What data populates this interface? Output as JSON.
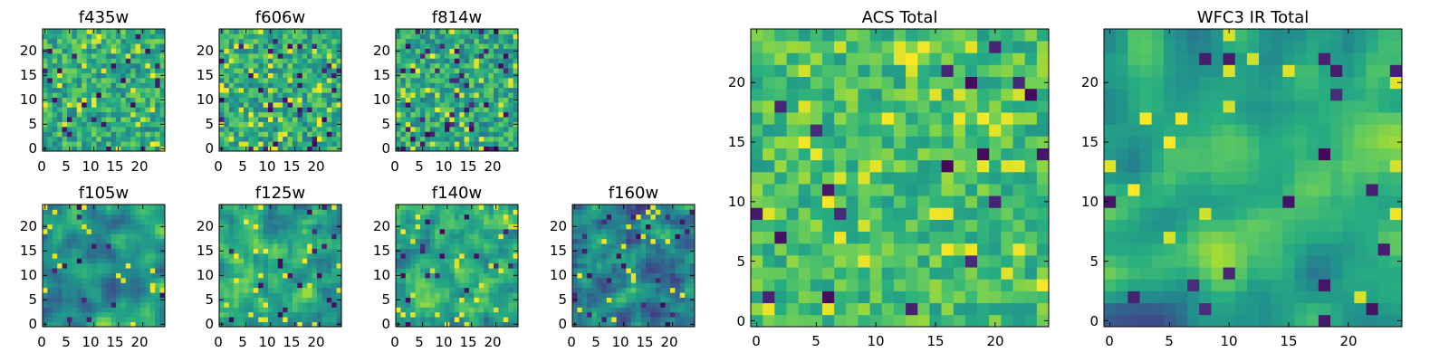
{
  "figure": {
    "colormap": "viridis"
  },
  "chart_data": [
    {
      "type": "heatmap",
      "title": "f435w",
      "grid_size": [
        25,
        25
      ],
      "xticks": [
        "0",
        "5",
        "10",
        "15",
        "20"
      ],
      "yticks": [
        "0",
        "5",
        "10",
        "15",
        "20"
      ],
      "xlim": [
        -0.5,
        24.5
      ],
      "ylim": [
        -0.5,
        24.5
      ],
      "vrange": [
        0,
        1
      ],
      "pattern": {
        "seed": 11,
        "smooth": 0,
        "base": 0.62,
        "spread": 0.2,
        "lows": 0.04,
        "highs": 0.06
      }
    },
    {
      "type": "heatmap",
      "title": "f606w",
      "grid_size": [
        25,
        25
      ],
      "xticks": [
        "0",
        "5",
        "10",
        "15",
        "20"
      ],
      "yticks": [
        "0",
        "5",
        "10",
        "15",
        "20"
      ],
      "xlim": [
        -0.5,
        24.5
      ],
      "ylim": [
        -0.5,
        24.5
      ],
      "vrange": [
        0,
        1
      ],
      "pattern": {
        "seed": 23,
        "smooth": 0,
        "base": 0.62,
        "spread": 0.2,
        "lows": 0.05,
        "highs": 0.07
      }
    },
    {
      "type": "heatmap",
      "title": "f814w",
      "grid_size": [
        25,
        25
      ],
      "xticks": [
        "0",
        "5",
        "10",
        "15",
        "20"
      ],
      "yticks": [
        "0",
        "5",
        "10",
        "15",
        "20"
      ],
      "xlim": [
        -0.5,
        24.5
      ],
      "ylim": [
        -0.5,
        24.5
      ],
      "vrange": [
        0,
        1
      ],
      "pattern": {
        "seed": 37,
        "smooth": 0,
        "base": 0.6,
        "spread": 0.2,
        "lows": 0.05,
        "highs": 0.07
      }
    },
    {
      "type": "heatmap",
      "title": "f105w",
      "grid_size": [
        25,
        25
      ],
      "xticks": [
        "0",
        "5",
        "10",
        "15",
        "20"
      ],
      "yticks": [
        "0",
        "5",
        "10",
        "15",
        "20"
      ],
      "xlim": [
        -0.5,
        24.5
      ],
      "ylim": [
        -0.5,
        24.5
      ],
      "vrange": [
        0,
        1
      ],
      "pattern": {
        "seed": 41,
        "smooth": 2,
        "base": 0.55,
        "spread": 0.3,
        "lows": 0.02,
        "highs": 0.03
      }
    },
    {
      "type": "heatmap",
      "title": "f125w",
      "grid_size": [
        25,
        25
      ],
      "xticks": [
        "0",
        "5",
        "10",
        "15",
        "20"
      ],
      "yticks": [
        "0",
        "5",
        "10",
        "15",
        "20"
      ],
      "xlim": [
        -0.5,
        24.5
      ],
      "ylim": [
        -0.5,
        24.5
      ],
      "vrange": [
        0,
        1
      ],
      "pattern": {
        "seed": 53,
        "smooth": 1,
        "base": 0.58,
        "spread": 0.28,
        "lows": 0.03,
        "highs": 0.04
      }
    },
    {
      "type": "heatmap",
      "title": "f140w",
      "grid_size": [
        25,
        25
      ],
      "xticks": [
        "0",
        "5",
        "10",
        "15",
        "20"
      ],
      "yticks": [
        "0",
        "5",
        "10",
        "15",
        "20"
      ],
      "xlim": [
        -0.5,
        24.5
      ],
      "ylim": [
        -0.5,
        24.5
      ],
      "vrange": [
        0,
        1
      ],
      "pattern": {
        "seed": 67,
        "smooth": 1,
        "base": 0.6,
        "spread": 0.26,
        "lows": 0.03,
        "highs": 0.04
      }
    },
    {
      "type": "heatmap",
      "title": "f160w",
      "grid_size": [
        25,
        25
      ],
      "xticks": [
        "0",
        "5",
        "10",
        "15",
        "20"
      ],
      "yticks": [
        "0",
        "5",
        "10",
        "15",
        "20"
      ],
      "xlim": [
        -0.5,
        24.5
      ],
      "ylim": [
        -0.5,
        24.5
      ],
      "vrange": [
        0,
        1
      ],
      "pattern": {
        "seed": 71,
        "smooth": 1,
        "base": 0.45,
        "spread": 0.3,
        "lows": 0.04,
        "highs": 0.03
      }
    },
    {
      "type": "heatmap",
      "title": "ACS Total",
      "grid_size": [
        25,
        25
      ],
      "xticks": [
        "0",
        "5",
        "10",
        "15",
        "20"
      ],
      "yticks": [
        "0",
        "5",
        "10",
        "15",
        "20"
      ],
      "xlim": [
        -0.5,
        24.5
      ],
      "ylim": [
        -0.5,
        24.5
      ],
      "vrange": [
        0,
        1
      ],
      "pattern": {
        "seed": 83,
        "smooth": 0,
        "base": 0.7,
        "spread": 0.16,
        "lows": 0.03,
        "highs": 0.06
      }
    },
    {
      "type": "heatmap",
      "title": "WFC3 IR Total",
      "grid_size": [
        25,
        25
      ],
      "xticks": [
        "0",
        "5",
        "10",
        "15",
        "20"
      ],
      "yticks": [
        "0",
        "5",
        "10",
        "15",
        "20"
      ],
      "xlim": [
        -0.5,
        24.5
      ],
      "ylim": [
        -0.5,
        24.5
      ],
      "vrange": [
        0,
        1
      ],
      "pattern": {
        "seed": 97,
        "smooth": 2,
        "base": 0.55,
        "spread": 0.32,
        "lows": 0.02,
        "highs": 0.02
      }
    }
  ]
}
